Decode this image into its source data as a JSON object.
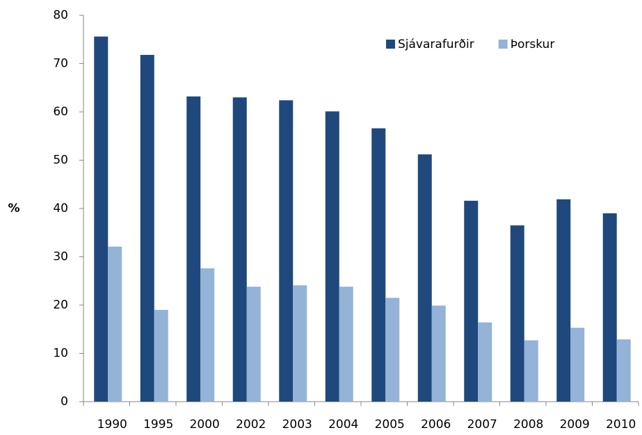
{
  "chart_data": {
    "type": "bar",
    "y_label": "%",
    "categories": [
      "1990",
      "1995",
      "2000",
      "2002",
      "2003",
      "2004",
      "2005",
      "2006",
      "2007",
      "2008",
      "2009",
      "2010"
    ],
    "series": [
      {
        "name": "Sjávarafurðir",
        "color": "#1f497d",
        "values": [
          75.6,
          71.8,
          63.2,
          63.0,
          62.4,
          60.1,
          56.6,
          51.2,
          41.6,
          36.5,
          41.9,
          39.0
        ]
      },
      {
        "name": "Þorskur",
        "color": "#95b3d7",
        "values": [
          32.1,
          19.0,
          27.6,
          23.8,
          24.1,
          23.8,
          21.5,
          19.9,
          16.4,
          12.7,
          15.3,
          12.9
        ]
      }
    ],
    "ylim": [
      0,
      80
    ],
    "yticks": [
      0,
      10,
      20,
      30,
      40,
      50,
      60,
      70,
      80
    ],
    "grid": false,
    "legend": "top-right"
  }
}
